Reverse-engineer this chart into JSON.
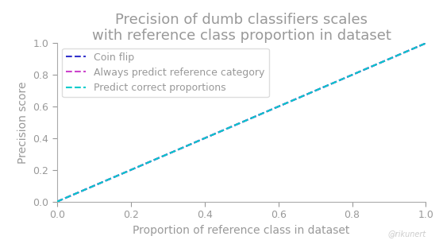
{
  "title": "Precision of dumb classifiers scales\nwith reference class proportion in dataset",
  "xlabel": "Proportion of reference class in dataset",
  "ylabel": "Precision score",
  "xlim": [
    0.0,
    1.0
  ],
  "ylim": [
    0.0,
    1.0
  ],
  "lines": [
    {
      "label": "Coin flip",
      "color": "#3333cc",
      "linestyle": "--",
      "linewidth": 1.5,
      "zorder": 1
    },
    {
      "label": "Always predict reference category",
      "color": "#cc44cc",
      "linestyle": "--",
      "linewidth": 1.5,
      "zorder": 2
    },
    {
      "label": "Predict correct proportions",
      "color": "#00cccc",
      "linestyle": "--",
      "linewidth": 1.5,
      "zorder": 3
    }
  ],
  "watermark": "@rikunert",
  "title_color": "#999999",
  "axis_color": "#aaaaaa",
  "tick_color": "#999999",
  "label_color": "#999999",
  "background_color": "#ffffff",
  "legend_frameon": true,
  "title_fontsize": 13,
  "axis_label_fontsize": 10,
  "tick_fontsize": 9,
  "legend_fontsize": 9,
  "watermark_color": "#cccccc",
  "watermark_fontsize": 7
}
